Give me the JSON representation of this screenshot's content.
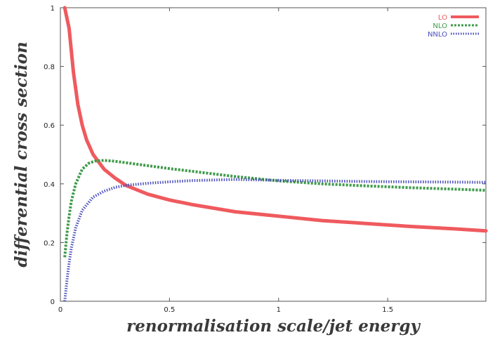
{
  "chart_data": {
    "type": "line",
    "xlabel": "renormalisation scale/jet energy",
    "ylabel": "differential cross section",
    "xlim": [
      0,
      1.95
    ],
    "ylim": [
      0,
      1
    ],
    "x_ticks": [
      {
        "value": 0,
        "label": "0"
      },
      {
        "value": 0.5,
        "label": "0.5"
      },
      {
        "value": 1,
        "label": "1"
      },
      {
        "value": 1.5,
        "label": "1.5"
      }
    ],
    "y_ticks": [
      {
        "value": 0,
        "label": "0"
      },
      {
        "value": 0.2,
        "label": "0.2"
      },
      {
        "value": 0.4,
        "label": "0.4"
      },
      {
        "value": 0.6,
        "label": "0.6"
      },
      {
        "value": 0.8,
        "label": "0.8"
      },
      {
        "value": 1,
        "label": "1"
      }
    ],
    "grid": false,
    "legend_position": "top-right",
    "series": [
      {
        "name": "LO",
        "color": "#ef5a5e",
        "style": "solid",
        "x": [
          0.02,
          0.04,
          0.06,
          0.08,
          0.1,
          0.12,
          0.15,
          0.2,
          0.25,
          0.3,
          0.4,
          0.5,
          0.6,
          0.8,
          1.0,
          1.2,
          1.4,
          1.6,
          1.8,
          1.95
        ],
        "y": [
          1.0,
          0.93,
          0.78,
          0.67,
          0.6,
          0.55,
          0.5,
          0.45,
          0.42,
          0.395,
          0.365,
          0.345,
          0.33,
          0.305,
          0.29,
          0.275,
          0.265,
          0.255,
          0.247,
          0.24
        ]
      },
      {
        "name": "NLO",
        "color": "#3f9a4a",
        "style": "dashed",
        "x": [
          0.02,
          0.03,
          0.04,
          0.05,
          0.07,
          0.1,
          0.13,
          0.16,
          0.2,
          0.25,
          0.3,
          0.4,
          0.5,
          0.6,
          0.8,
          1.0,
          1.2,
          1.4,
          1.6,
          1.8,
          1.95
        ],
        "y": [
          0.15,
          0.23,
          0.29,
          0.34,
          0.4,
          0.45,
          0.47,
          0.478,
          0.48,
          0.477,
          0.472,
          0.462,
          0.452,
          0.443,
          0.425,
          0.41,
          0.4,
          0.393,
          0.387,
          0.382,
          0.378
        ]
      },
      {
        "name": "NNLO",
        "color": "#4a4fb8",
        "style": "dotted",
        "x": [
          0.02,
          0.03,
          0.04,
          0.05,
          0.07,
          0.1,
          0.15,
          0.2,
          0.25,
          0.3,
          0.4,
          0.5,
          0.6,
          0.8,
          1.0,
          1.2,
          1.4,
          1.6,
          1.8,
          1.95
        ],
        "y": [
          0.0,
          0.07,
          0.13,
          0.18,
          0.25,
          0.31,
          0.355,
          0.375,
          0.388,
          0.395,
          0.402,
          0.407,
          0.411,
          0.415,
          0.412,
          0.41,
          0.408,
          0.407,
          0.406,
          0.405
        ]
      }
    ]
  }
}
